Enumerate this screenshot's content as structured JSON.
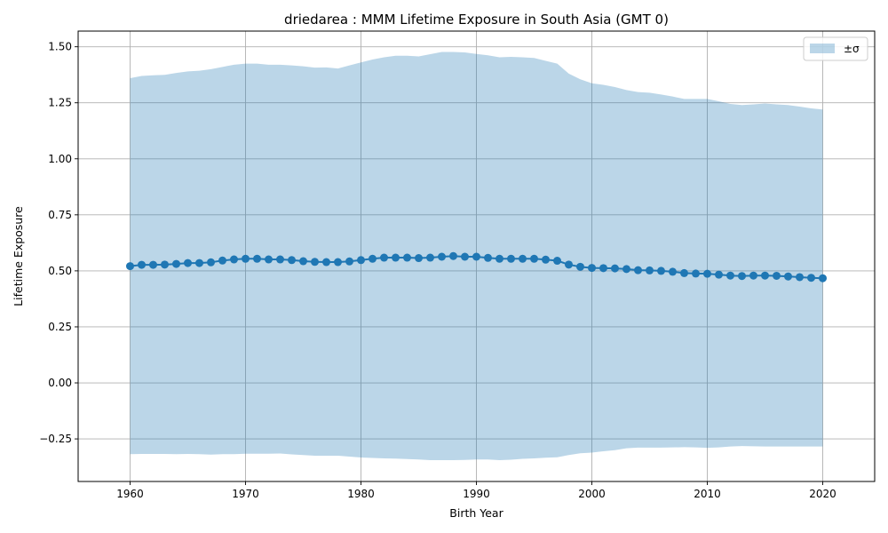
{
  "chart_data": {
    "type": "line",
    "title": "driedarea : MMM Lifetime Exposure in South Asia (GMT 0)",
    "xlabel": "Birth Year",
    "ylabel": "Lifetime Exposure",
    "xlim": [
      1955.5,
      2024.5
    ],
    "ylim": [
      -0.44,
      1.57
    ],
    "x_ticks": [
      1960,
      1970,
      1980,
      1990,
      2000,
      2010,
      2020
    ],
    "y_ticks": [
      -0.25,
      0.0,
      0.25,
      0.5,
      0.75,
      1.0,
      1.25,
      1.5
    ],
    "y_tick_labels": [
      "−0.25",
      "0.00",
      "0.25",
      "0.50",
      "0.75",
      "1.00",
      "1.25",
      "1.50"
    ],
    "grid": true,
    "legend": {
      "placement": "top-right",
      "label": "±σ"
    },
    "colors": {
      "line": "#1f77b4",
      "band": "#1f77b4",
      "band_opacity": 0.3
    },
    "x": [
      1960,
      1961,
      1962,
      1963,
      1964,
      1965,
      1966,
      1967,
      1968,
      1969,
      1970,
      1971,
      1972,
      1973,
      1974,
      1975,
      1976,
      1977,
      1978,
      1979,
      1980,
      1981,
      1982,
      1983,
      1984,
      1985,
      1986,
      1987,
      1988,
      1989,
      1990,
      1991,
      1992,
      1993,
      1994,
      1995,
      1996,
      1997,
      1998,
      1999,
      2000,
      2001,
      2002,
      2003,
      2004,
      2005,
      2006,
      2007,
      2008,
      2009,
      2010,
      2011,
      2012,
      2013,
      2014,
      2015,
      2016,
      2017,
      2018,
      2019,
      2020
    ],
    "series": [
      {
        "values": [
          0.521,
          0.527,
          0.527,
          0.528,
          0.531,
          0.535,
          0.535,
          0.538,
          0.546,
          0.551,
          0.554,
          0.554,
          0.551,
          0.551,
          0.548,
          0.543,
          0.54,
          0.539,
          0.539,
          0.542,
          0.548,
          0.554,
          0.559,
          0.559,
          0.559,
          0.557,
          0.559,
          0.563,
          0.566,
          0.563,
          0.563,
          0.558,
          0.554,
          0.554,
          0.554,
          0.554,
          0.55,
          0.545,
          0.528,
          0.518,
          0.513,
          0.512,
          0.511,
          0.508,
          0.503,
          0.502,
          0.5,
          0.496,
          0.49,
          0.488,
          0.487,
          0.483,
          0.479,
          0.477,
          0.479,
          0.479,
          0.478,
          0.475,
          0.472,
          0.469,
          0.467
        ],
        "lower": [
          -0.318,
          -0.317,
          -0.317,
          -0.317,
          -0.318,
          -0.317,
          -0.318,
          -0.32,
          -0.318,
          -0.318,
          -0.316,
          -0.316,
          -0.316,
          -0.315,
          -0.319,
          -0.322,
          -0.325,
          -0.325,
          -0.325,
          -0.329,
          -0.333,
          -0.335,
          -0.337,
          -0.338,
          -0.34,
          -0.342,
          -0.345,
          -0.345,
          -0.345,
          -0.344,
          -0.342,
          -0.342,
          -0.345,
          -0.343,
          -0.339,
          -0.337,
          -0.334,
          -0.332,
          -0.322,
          -0.314,
          -0.311,
          -0.305,
          -0.3,
          -0.292,
          -0.289,
          -0.289,
          -0.289,
          -0.288,
          -0.287,
          -0.288,
          -0.29,
          -0.288,
          -0.284,
          -0.282,
          -0.283,
          -0.284,
          -0.284,
          -0.284,
          -0.284,
          -0.284,
          -0.284
        ],
        "upper": [
          1.36,
          1.37,
          1.373,
          1.375,
          1.383,
          1.39,
          1.393,
          1.4,
          1.41,
          1.42,
          1.425,
          1.425,
          1.42,
          1.42,
          1.417,
          1.413,
          1.407,
          1.408,
          1.403,
          1.417,
          1.43,
          1.443,
          1.453,
          1.46,
          1.46,
          1.457,
          1.467,
          1.477,
          1.477,
          1.475,
          1.468,
          1.462,
          1.453,
          1.455,
          1.453,
          1.45,
          1.437,
          1.425,
          1.38,
          1.355,
          1.337,
          1.33,
          1.32,
          1.307,
          1.298,
          1.295,
          1.287,
          1.278,
          1.267,
          1.267,
          1.267,
          1.257,
          1.245,
          1.24,
          1.243,
          1.247,
          1.243,
          1.24,
          1.233,
          1.225,
          1.22
        ]
      }
    ]
  }
}
